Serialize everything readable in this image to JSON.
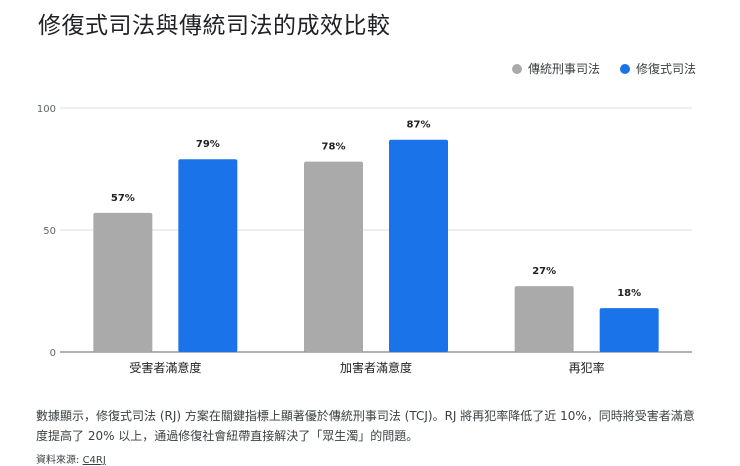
{
  "title": "修復式司法與傳統司法的成效比較",
  "legend": [
    {
      "label": "傳統刑事司法",
      "color": "#aaaaaa"
    },
    {
      "label": "修復式司法",
      "color": "#1a73e8"
    }
  ],
  "chart_data": {
    "type": "bar",
    "categories": [
      "受害者滿意度",
      "加害者滿意度",
      "再犯率"
    ],
    "series": [
      {
        "name": "傳統刑事司法",
        "values": [
          57,
          78,
          27
        ],
        "labels": [
          "57%",
          "78%",
          "27%"
        ],
        "color": "#aaaaaa"
      },
      {
        "name": "修復式司法",
        "values": [
          79,
          87,
          18
        ],
        "labels": [
          "79%",
          "87%",
          "18%"
        ],
        "color": "#1a73e8"
      }
    ],
    "yticks": [
      0,
      50,
      100
    ],
    "ylim": [
      0,
      100
    ],
    "grid": true,
    "legend_position": "top-right"
  },
  "description": "數據顯示，修復式司法 (RJ) 方案在關鍵指標上顯著優於傳統刑事司法 (TCJ)。RJ 將再犯率降低了近 10%，同時將受害者滿意度提高了 20% 以上，通過修復社會紐帶直接解決了「眾生濁」的問題。",
  "source": {
    "prefix": "資料來源: ",
    "link": "C4RJ"
  }
}
